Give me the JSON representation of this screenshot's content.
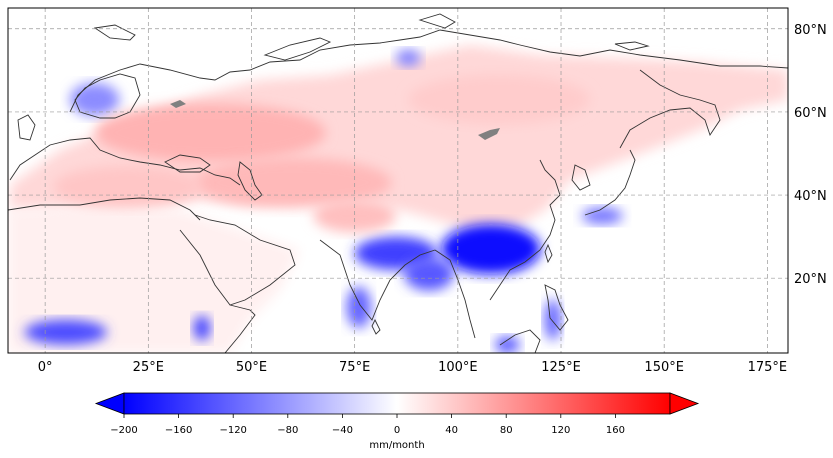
{
  "map": {
    "projection": "PlateCarree",
    "lon_range": [
      -9,
      180
    ],
    "lat_range": [
      2,
      85
    ],
    "lon_ticks": [
      {
        "value": 0,
        "label": "0°"
      },
      {
        "value": 25,
        "label": "25°E"
      },
      {
        "value": 50,
        "label": "50°E"
      },
      {
        "value": 75,
        "label": "75°E"
      },
      {
        "value": 100,
        "label": "100°E"
      },
      {
        "value": 125,
        "label": "125°E"
      },
      {
        "value": 150,
        "label": "150°E"
      },
      {
        "value": 175,
        "label": "175°E"
      }
    ],
    "lat_ticks": [
      {
        "value": 20,
        "label": "20°N"
      },
      {
        "value": 40,
        "label": "40°N"
      },
      {
        "value": 60,
        "label": "60°N"
      },
      {
        "value": 80,
        "label": "80°N"
      }
    ],
    "gridlines": true,
    "field_regions": [
      {
        "name": "south-china-drying",
        "lon": 108,
        "lat": 27,
        "value": -190,
        "rx": 12,
        "ry": 6
      },
      {
        "name": "north-india-drying",
        "lon": 85,
        "lat": 26,
        "value": -150,
        "rx": 10,
        "ry": 4
      },
      {
        "name": "bay-of-bengal-drying",
        "lon": 93,
        "lat": 21,
        "value": -130,
        "rx": 6,
        "ry": 4
      },
      {
        "name": "southwest-india-drying",
        "lon": 76,
        "lat": 13,
        "value": -120,
        "rx": 3,
        "ry": 5
      },
      {
        "name": "west-africa-drying",
        "lon": 5,
        "lat": 7,
        "value": -140,
        "rx": 10,
        "ry": 3
      },
      {
        "name": "ethiopia-drying",
        "lon": 38,
        "lat": 8,
        "value": -150,
        "rx": 2,
        "ry": 3
      },
      {
        "name": "borneo-drying",
        "lon": 112,
        "lat": 4,
        "value": -130,
        "rx": 3,
        "ry": 2
      },
      {
        "name": "philippines-drying",
        "lon": 123,
        "lat": 10,
        "value": -120,
        "rx": 2,
        "ry": 5
      },
      {
        "name": "japan-drying",
        "lon": 135,
        "lat": 35,
        "value": -110,
        "rx": 5,
        "ry": 2
      },
      {
        "name": "scandinavia-drying",
        "lon": 12,
        "lat": 63,
        "value": -90,
        "rx": 6,
        "ry": 4
      },
      {
        "name": "kara-sea-drying",
        "lon": 88,
        "lat": 73,
        "value": -100,
        "rx": 3,
        "ry": 2
      },
      {
        "name": "central-siberia-wetting",
        "lon": 110,
        "lat": 63,
        "value": 40,
        "rx": 22,
        "ry": 6
      },
      {
        "name": "western-russia-wetting",
        "lon": 40,
        "lat": 55,
        "value": 60,
        "rx": 28,
        "ry": 7
      },
      {
        "name": "central-asia-wetting",
        "lon": 60,
        "lat": 43,
        "value": 55,
        "rx": 24,
        "ry": 6
      },
      {
        "name": "tibet-wetting",
        "lon": 75,
        "lat": 35,
        "value": 50,
        "rx": 10,
        "ry": 4
      },
      {
        "name": "mediterranean-wetting",
        "lon": 20,
        "lat": 42,
        "value": 45,
        "rx": 18,
        "ry": 5
      }
    ]
  },
  "colorbar": {
    "min": -200,
    "max": 200,
    "colormap": "bwr",
    "extend": "both",
    "ticks": [
      "−200",
      "−160",
      "−120",
      "−80",
      "−40",
      "0",
      "40",
      "80",
      "120",
      "160"
    ],
    "tick_values": [
      -200,
      -160,
      -120,
      -80,
      -40,
      0,
      40,
      80,
      120,
      160
    ],
    "label": "mm/month"
  },
  "colors": {
    "negative": "#0000ff",
    "neutral": "#ffffff",
    "positive": "#ff0000",
    "coastline": "#333333",
    "lake_fill": "#808080"
  }
}
